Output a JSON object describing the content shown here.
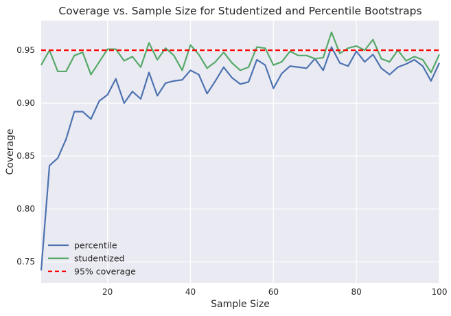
{
  "chart_data": {
    "type": "line",
    "title": "Coverage vs. Sample Size for Studentized and Percentile Bootstraps",
    "xlabel": "Sample Size",
    "ylabel": "Coverage",
    "xlim": [
      4,
      100
    ],
    "ylim": [
      0.73,
      0.978
    ],
    "xticks": [
      20,
      40,
      60,
      80,
      100
    ],
    "yticks": [
      0.75,
      0.8,
      0.85,
      0.9,
      0.95
    ],
    "xtick_labels": [
      "20",
      "40",
      "60",
      "80",
      "100"
    ],
    "ytick_labels": [
      "0.75",
      "0.80",
      "0.85",
      "0.90",
      "0.95"
    ],
    "grid": true,
    "legend_position": "lower-left",
    "x": [
      4,
      6,
      8,
      10,
      12,
      14,
      16,
      18,
      20,
      22,
      24,
      26,
      28,
      30,
      32,
      34,
      36,
      38,
      40,
      42,
      44,
      46,
      48,
      50,
      52,
      54,
      56,
      58,
      60,
      62,
      64,
      66,
      68,
      70,
      72,
      74,
      76,
      78,
      80,
      82,
      84,
      86,
      88,
      90,
      92,
      94,
      96,
      98,
      100
    ],
    "series": [
      {
        "name": "percentile",
        "color": "#4c72b0",
        "style": "solid",
        "values": [
          0.742,
          0.841,
          0.848,
          0.866,
          0.892,
          0.892,
          0.885,
          0.902,
          0.908,
          0.923,
          0.9,
          0.911,
          0.904,
          0.929,
          0.907,
          0.919,
          0.921,
          0.922,
          0.931,
          0.927,
          0.909,
          0.921,
          0.934,
          0.924,
          0.918,
          0.92,
          0.941,
          0.936,
          0.914,
          0.928,
          0.935,
          0.934,
          0.933,
          0.942,
          0.931,
          0.953,
          0.938,
          0.935,
          0.949,
          0.939,
          0.946,
          0.933,
          0.927,
          0.934,
          0.937,
          0.941,
          0.935,
          0.921,
          0.938
        ]
      },
      {
        "name": "studentized",
        "color": "#55a868",
        "style": "solid",
        "values": [
          0.936,
          0.95,
          0.93,
          0.93,
          0.945,
          0.948,
          0.927,
          0.939,
          0.951,
          0.951,
          0.94,
          0.944,
          0.934,
          0.957,
          0.941,
          0.952,
          0.945,
          0.931,
          0.955,
          0.946,
          0.933,
          0.939,
          0.948,
          0.938,
          0.931,
          0.934,
          0.953,
          0.952,
          0.936,
          0.939,
          0.949,
          0.945,
          0.945,
          0.942,
          0.943,
          0.967,
          0.947,
          0.952,
          0.954,
          0.95,
          0.96,
          0.942,
          0.939,
          0.95,
          0.94,
          0.944,
          0.941,
          0.929,
          0.946
        ]
      },
      {
        "name": "95% coverage",
        "color": "#ff0000",
        "style": "dashed",
        "constant": 0.95
      }
    ]
  }
}
